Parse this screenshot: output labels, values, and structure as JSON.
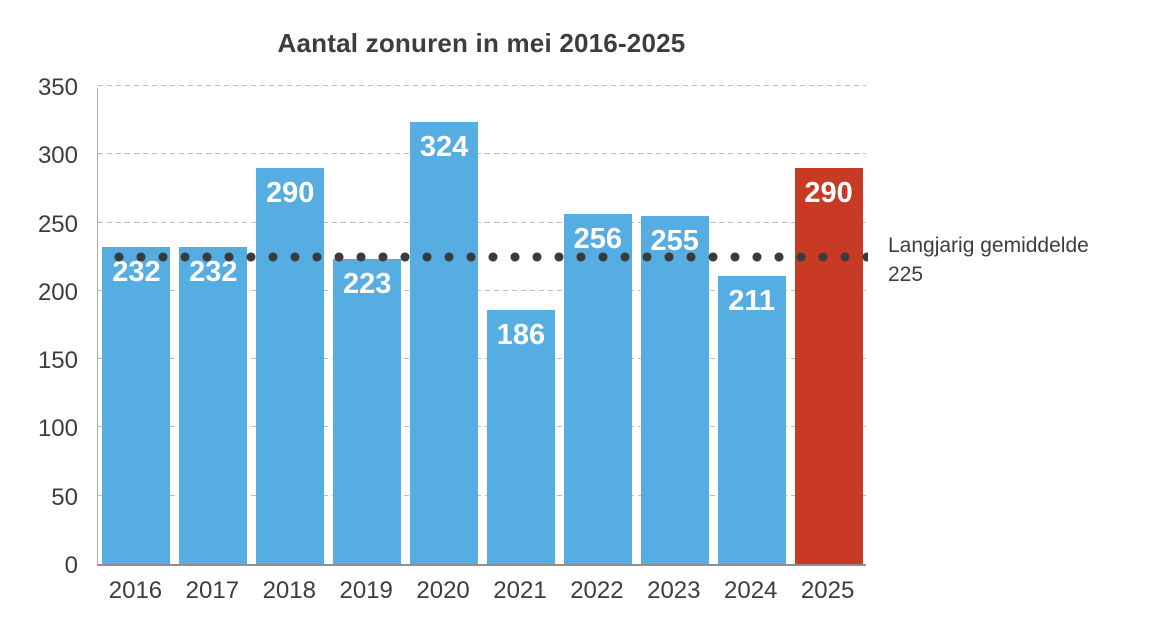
{
  "chart_data": {
    "type": "bar",
    "title": "Aantal zonuren in mei 2016-2025",
    "categories": [
      "2016",
      "2017",
      "2018",
      "2019",
      "2020",
      "2021",
      "2022",
      "2023",
      "2024",
      "2025"
    ],
    "values": [
      232,
      232,
      290,
      223,
      324,
      186,
      256,
      255,
      211,
      290
    ],
    "highlight_index": 9,
    "ylim": [
      0,
      350
    ],
    "yticks": [
      0,
      50,
      100,
      150,
      200,
      250,
      300,
      350
    ],
    "grid": "horizontal-dashed",
    "legend": "none",
    "average": {
      "value": 225,
      "label": "Langjarig gemiddelde"
    },
    "colors": {
      "bar": "#56ade1",
      "highlight_bar": "#c93a24",
      "dot_line": "#3b3b3b",
      "text": "#3d3d3d",
      "bar_label": "#ffffff",
      "grid": "#bdbdbd"
    }
  }
}
